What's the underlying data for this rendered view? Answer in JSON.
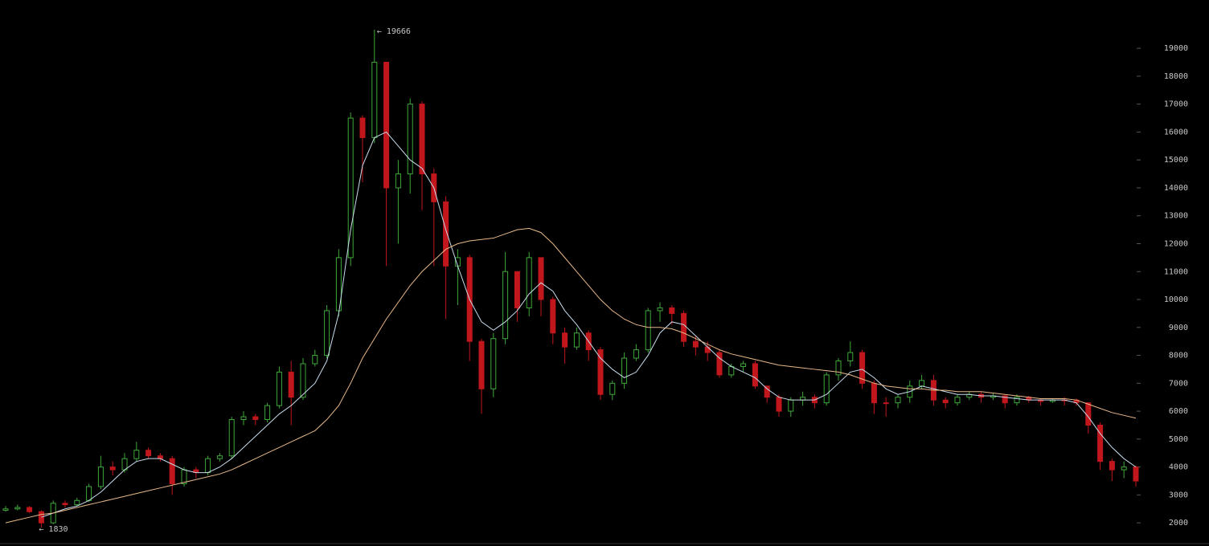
{
  "chart_data": {
    "type": "candlestick",
    "open": [
      2450,
      2500,
      2550,
      2400,
      2000,
      2700,
      2650,
      2800,
      3300,
      4000,
      3900,
      4300,
      4600,
      4400,
      4300,
      3400,
      3900,
      3800,
      4300,
      4400,
      5700,
      5800,
      5700,
      6200,
      7400,
      6500,
      7700,
      8000,
      9600,
      11500,
      16500,
      15800,
      18500,
      14000,
      14500,
      17000,
      14500,
      13500,
      11200,
      11500,
      8500,
      6800,
      8600,
      11000,
      9700,
      11500,
      10000,
      8800,
      8300,
      8800,
      8200,
      6600,
      7000,
      7900,
      8200,
      9600,
      9700,
      9500,
      8500,
      8300,
      8100,
      7300,
      7600,
      7700,
      6900,
      6500,
      6000,
      6400,
      6500,
      6300,
      7300,
      7800,
      8100,
      7000,
      6300,
      6300,
      6500,
      6900,
      7100,
      6400,
      6300,
      6500,
      6600,
      6500,
      6550,
      6300,
      6500,
      6400,
      6350,
      6400,
      6400,
      6300,
      5500,
      4200,
      3900,
      4000
    ],
    "high": [
      2600,
      2650,
      2600,
      2450,
      2800,
      2800,
      2900,
      3400,
      4400,
      4200,
      4500,
      4900,
      4700,
      4500,
      4400,
      4000,
      4000,
      4400,
      4500,
      5800,
      6000,
      5900,
      6300,
      7600,
      7800,
      7900,
      8200,
      9800,
      11800,
      16700,
      16600,
      19666,
      18500,
      15000,
      17200,
      17100,
      14700,
      13700,
      11800,
      11600,
      8600,
      8800,
      11700,
      11000,
      11700,
      11500,
      10100,
      9000,
      9000,
      8900,
      8300,
      7100,
      8100,
      8400,
      9700,
      9900,
      9800,
      9600,
      8700,
      8500,
      8200,
      7700,
      7800,
      7800,
      6900,
      6600,
      6500,
      6700,
      6600,
      7400,
      7900,
      8500,
      8200,
      7100,
      6500,
      6600,
      7100,
      7300,
      7300,
      6500,
      6600,
      6700,
      6700,
      6650,
      6600,
      6600,
      6550,
      6450,
      6450,
      6500,
      6450,
      6300,
      5600,
      4300,
      4200,
      4050
    ],
    "low": [
      2400,
      2450,
      2350,
      1830,
      1950,
      2550,
      2600,
      2750,
      3200,
      3700,
      3800,
      4200,
      4300,
      4200,
      3000,
      3300,
      3600,
      3700,
      4200,
      4300,
      5500,
      5500,
      5600,
      6100,
      5500,
      6400,
      7600,
      7900,
      9400,
      11200,
      14200,
      15600,
      11200,
      12000,
      13800,
      13200,
      11200,
      9300,
      9800,
      7800,
      5900,
      6500,
      8400,
      9200,
      9400,
      9400,
      8400,
      7700,
      8200,
      7800,
      6400,
      6400,
      6800,
      7800,
      8100,
      9200,
      9100,
      8300,
      8000,
      7800,
      7200,
      7200,
      7400,
      6800,
      6300,
      5800,
      5800,
      6200,
      6100,
      6200,
      7100,
      7600,
      6800,
      5900,
      5800,
      6100,
      6300,
      6800,
      6200,
      6100,
      6200,
      6400,
      6300,
      6400,
      6100,
      6200,
      6300,
      6200,
      6300,
      6200,
      6200,
      5200,
      3900,
      3500,
      3600,
      3300
    ],
    "close": [
      2500,
      2550,
      2400,
      2000,
      2700,
      2650,
      2800,
      3300,
      4000,
      3900,
      4300,
      4600,
      4400,
      4300,
      3400,
      3900,
      3800,
      4300,
      4400,
      5700,
      5800,
      5700,
      6200,
      7400,
      6500,
      7700,
      8000,
      9600,
      11500,
      16500,
      15800,
      18500,
      14000,
      14500,
      17000,
      14500,
      13500,
      11200,
      11500,
      8500,
      6800,
      8600,
      11000,
      9700,
      11500,
      10000,
      8800,
      8300,
      8800,
      8200,
      6600,
      7000,
      7900,
      8200,
      9600,
      9700,
      9500,
      8500,
      8300,
      8100,
      7300,
      7600,
      7700,
      6900,
      6500,
      6000,
      6400,
      6500,
      6300,
      7300,
      7800,
      8100,
      7000,
      6300,
      6300,
      6500,
      6900,
      7100,
      6400,
      6300,
      6500,
      6600,
      6500,
      6550,
      6300,
      6500,
      6400,
      6350,
      6400,
      6400,
      6300,
      5500,
      4200,
      3900,
      4000,
      3500
    ],
    "up_color": "#3fa83a",
    "down_color": "#c1171c",
    "lines": [
      {
        "color": "#c8dced",
        "values": [
          null,
          null,
          null,
          2200,
          2350,
          2500,
          2600,
          2800,
          3100,
          3500,
          3900,
          4200,
          4300,
          4300,
          4100,
          3900,
          3800,
          3800,
          4000,
          4300,
          4700,
          5100,
          5500,
          5900,
          6200,
          6600,
          7000,
          7800,
          9500,
          12500,
          14800,
          15800,
          16000,
          15500,
          15000,
          14700,
          14000,
          12500,
          11200,
          10000,
          9200,
          8900,
          9200,
          9600,
          10200,
          10600,
          10300,
          9600,
          9100,
          8500,
          7900,
          7500,
          7200,
          7400,
          8000,
          8800,
          9200,
          9100,
          8700,
          8300,
          7900,
          7600,
          7400,
          7200,
          6800,
          6500,
          6400,
          6400,
          6400,
          6600,
          7000,
          7400,
          7500,
          7200,
          6800,
          6600,
          6700,
          6900,
          6800,
          6700,
          6600,
          6600,
          6550,
          6550,
          6500,
          6450,
          6400,
          6400,
          6400,
          6400,
          6300,
          5800,
          5200,
          4700,
          4300,
          4000
        ]
      },
      {
        "color": "#e8b88a",
        "values": [
          2000,
          2100,
          2200,
          2300,
          2350,
          2450,
          2550,
          2650,
          2750,
          2850,
          2950,
          3050,
          3150,
          3250,
          3350,
          3450,
          3550,
          3650,
          3750,
          3900,
          4100,
          4300,
          4500,
          4700,
          4900,
          5100,
          5300,
          5700,
          6200,
          7000,
          7900,
          8600,
          9300,
          9900,
          10500,
          11000,
          11400,
          11800,
          12000,
          12100,
          12150,
          12200,
          12350,
          12500,
          12550,
          12400,
          12000,
          11500,
          11000,
          10500,
          10000,
          9600,
          9300,
          9100,
          9000,
          9000,
          8950,
          8800,
          8600,
          8400,
          8200,
          8050,
          7950,
          7850,
          7750,
          7650,
          7600,
          7550,
          7500,
          7450,
          7400,
          7300,
          7150,
          7000,
          6900,
          6850,
          6800,
          6800,
          6750,
          6750,
          6700,
          6700,
          6700,
          6650,
          6600,
          6550,
          6500,
          6450,
          6450,
          6450,
          6400,
          6250,
          6100,
          5950,
          5850,
          5750
        ]
      }
    ],
    "high_label": "← 19666",
    "low_label": "← 1830",
    "ylim": [
      1170,
      20730
    ],
    "yticks": [
      2000,
      3000,
      4000,
      5000,
      6000,
      7000,
      8000,
      9000,
      10000,
      11000,
      12000,
      13000,
      14000,
      15000,
      16000,
      17000,
      18000,
      19000
    ]
  }
}
